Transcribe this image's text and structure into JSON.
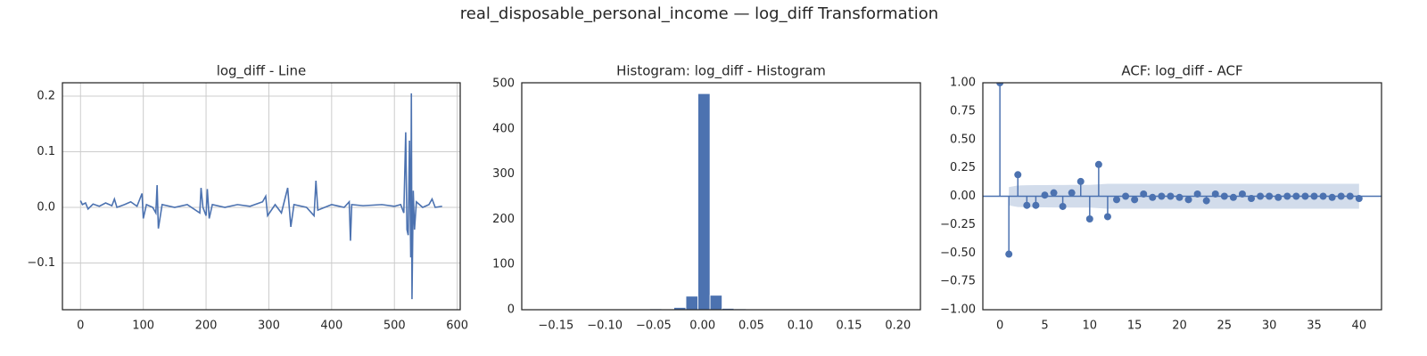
{
  "title": "real_disposable_personal_income — log_diff Transformation",
  "chart_data": [
    {
      "type": "line",
      "title": "log_diff - Line",
      "color": "#4c72b0",
      "grid": true,
      "x": [
        0,
        3,
        8,
        12,
        20,
        30,
        40,
        50,
        54,
        58,
        70,
        80,
        90,
        98,
        100,
        105,
        115,
        120,
        122,
        124,
        130,
        150,
        170,
        190,
        192,
        195,
        200,
        202,
        205,
        210,
        230,
        250,
        270,
        290,
        295,
        298,
        310,
        320,
        330,
        335,
        340,
        360,
        372,
        375,
        378,
        400,
        420,
        428,
        430,
        432,
        450,
        480,
        500,
        510,
        515,
        518,
        520,
        522,
        524,
        526,
        527,
        528,
        530,
        532,
        535,
        545,
        555,
        560,
        565,
        576
      ],
      "values": [
        0.012,
        0.005,
        0.008,
        -0.003,
        0.006,
        0.002,
        0.008,
        0.003,
        0.015,
        0.0,
        0.005,
        0.01,
        0.002,
        0.025,
        -0.02,
        0.005,
        0.0,
        -0.01,
        0.04,
        -0.038,
        0.005,
        0.0,
        0.005,
        -0.01,
        0.035,
        0.0,
        -0.015,
        0.033,
        -0.02,
        0.005,
        0.0,
        0.005,
        0.002,
        0.01,
        0.02,
        -0.015,
        0.005,
        -0.01,
        0.035,
        -0.035,
        0.005,
        0.0,
        -0.015,
        0.048,
        -0.005,
        0.005,
        0.0,
        0.01,
        -0.06,
        0.005,
        0.003,
        0.005,
        0.002,
        0.005,
        -0.01,
        0.135,
        -0.04,
        -0.05,
        0.12,
        -0.09,
        0.205,
        -0.165,
        0.03,
        -0.04,
        0.01,
        0.0,
        0.005,
        0.015,
        0.0,
        0.002
      ],
      "xlim": [
        -28.8,
        604.8
      ],
      "xticks": [
        0,
        100,
        200,
        300,
        400,
        500,
        600
      ],
      "ylim": [
        -0.184,
        0.224
      ],
      "yticks": [
        {
          "value": -0.1,
          "label": "−0.1"
        },
        {
          "value": 0,
          "label": "0.0"
        },
        {
          "value": 0.1,
          "label": "0.1"
        },
        {
          "value": 0.2,
          "label": "0.2"
        }
      ]
    },
    {
      "type": "histogram",
      "title": "Histogram: log_diff - Histogram",
      "color": "#4c72b0",
      "grid": false,
      "bins": [
        -0.165,
        -0.1527,
        -0.1403,
        -0.128,
        -0.1157,
        -0.1033,
        -0.091,
        -0.0787,
        -0.0663,
        -0.054,
        -0.0417,
        -0.0293,
        -0.017,
        -0.0047,
        0.0077,
        0.02,
        0.0323,
        0.0447,
        0.057,
        0.0693,
        0.0817,
        0.094,
        0.1063,
        0.1187,
        0.131,
        0.1433,
        0.1557,
        0.168,
        0.1803,
        0.1927,
        0.205
      ],
      "values": [
        1,
        0,
        0,
        0,
        0,
        0,
        1,
        0,
        1,
        2,
        1,
        5,
        30,
        478,
        32,
        3,
        2,
        0,
        0,
        0,
        0,
        0,
        0,
        1,
        1,
        0,
        0,
        0,
        0,
        1
      ],
      "xlim": [
        -0.185,
        0.223
      ],
      "xticks": [
        {
          "value": -0.15,
          "label": "−0.15"
        },
        {
          "value": -0.1,
          "label": "−0.10"
        },
        {
          "value": -0.05,
          "label": "−0.05"
        },
        {
          "value": 0,
          "label": "0.00"
        },
        {
          "value": 0.05,
          "label": "0.05"
        },
        {
          "value": 0.1,
          "label": "0.10"
        },
        {
          "value": 0.15,
          "label": "0.15"
        },
        {
          "value": 0.2,
          "label": "0.20"
        }
      ],
      "ylim": [
        0,
        502
      ],
      "yticks": [
        0,
        100,
        200,
        300,
        400,
        500
      ]
    },
    {
      "type": "stem",
      "title": "ACF: log_diff - ACF",
      "color": "#4c72b0",
      "grid": false,
      "x": [
        0,
        1,
        2,
        3,
        4,
        5,
        6,
        7,
        8,
        9,
        10,
        11,
        12,
        13,
        14,
        15,
        16,
        17,
        18,
        19,
        20,
        21,
        22,
        23,
        24,
        25,
        26,
        27,
        28,
        29,
        30,
        31,
        32,
        33,
        34,
        35,
        36,
        37,
        38,
        39,
        40
      ],
      "values": [
        1.0,
        -0.51,
        0.19,
        -0.08,
        -0.08,
        0.01,
        0.03,
        -0.09,
        0.03,
        0.13,
        -0.2,
        0.28,
        -0.18,
        -0.03,
        0.0,
        -0.03,
        0.02,
        -0.01,
        0.0,
        0.0,
        -0.01,
        -0.03,
        0.02,
        -0.04,
        0.02,
        0.0,
        -0.01,
        0.02,
        -0.02,
        0.0,
        0.0,
        -0.01,
        0.0,
        0.0,
        0.0,
        0.0,
        0.0,
        -0.01,
        0.0,
        0.0,
        -0.02
      ],
      "confidence": [
        null,
        0.08,
        0.095,
        0.097,
        0.098,
        0.098,
        0.099,
        0.099,
        0.1,
        0.1,
        0.1,
        0.105,
        0.11,
        0.11,
        0.11,
        0.11,
        0.11,
        0.11,
        0.11,
        0.11,
        0.11,
        0.11,
        0.11,
        0.11,
        0.11,
        0.11,
        0.11,
        0.11,
        0.11,
        0.11,
        0.11,
        0.11,
        0.11,
        0.11,
        0.11,
        0.11,
        0.11,
        0.11,
        0.11,
        0.11,
        0.11
      ],
      "xlim": [
        -1.9,
        42.5
      ],
      "xticks": [
        0,
        5,
        10,
        15,
        20,
        25,
        30,
        35,
        40
      ],
      "ylim": [
        -1,
        1
      ],
      "yticks": [
        {
          "value": -1,
          "label": "−1.00"
        },
        {
          "value": -0.75,
          "label": "−0.75"
        },
        {
          "value": -0.5,
          "label": "−0.50"
        },
        {
          "value": -0.25,
          "label": "−0.25"
        },
        {
          "value": 0,
          "label": "0.00"
        },
        {
          "value": 0.25,
          "label": "0.25"
        },
        {
          "value": 0.5,
          "label": "0.50"
        },
        {
          "value": 0.75,
          "label": "0.75"
        },
        {
          "value": 1,
          "label": "1.00"
        }
      ]
    }
  ]
}
